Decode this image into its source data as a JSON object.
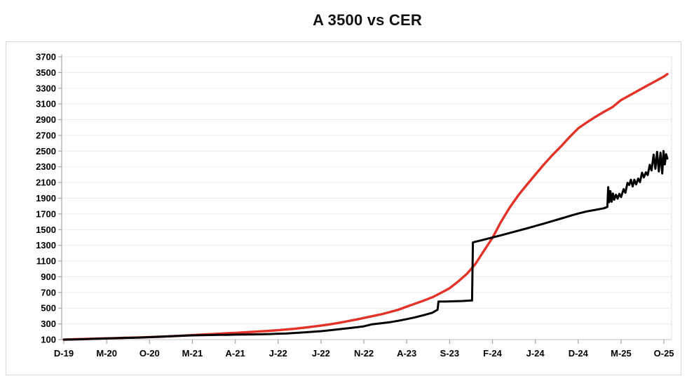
{
  "title": "A 3500 vs CER",
  "colors": {
    "background": "#ffffff",
    "box_border": "#d9d9d9",
    "gridline": "#ebebeb",
    "axis_line": "#a6a6a6",
    "x_axis_line": "#c6c6c6",
    "plot_right_border": "#e0e0e0",
    "tick": "#a6a6a6",
    "label_text": "#000000",
    "cer_red": "#e33228",
    "a3500_black": "#000000"
  },
  "chart_data": {
    "type": "line",
    "title": "A 3500 vs CER",
    "grid": "horizontal",
    "legend": "none",
    "x_axis": {
      "unit": "months since Dec-2019 (labels M-YY)",
      "tick_labels": [
        "D-19",
        "M-20",
        "O-20",
        "M-21",
        "A-21",
        "J-22",
        "J-22",
        "N-22",
        "A-23",
        "S-23",
        "F-24",
        "J-24",
        "D-24",
        "M-25",
        "O-25"
      ],
      "tick_months": [
        0,
        5,
        10,
        15,
        20,
        25,
        30,
        35,
        40,
        45,
        50,
        55,
        60,
        65,
        70
      ],
      "range": [
        0,
        70.5
      ]
    },
    "y_axis": {
      "min": 100,
      "max": 3700,
      "ticks": [
        100,
        300,
        500,
        700,
        900,
        1100,
        1300,
        1500,
        1700,
        1900,
        2100,
        2300,
        2500,
        2700,
        2900,
        3100,
        3300,
        3500,
        3700
      ]
    },
    "series": [
      {
        "name": "CER",
        "color": "#e33228",
        "width": 3.4,
        "points": [
          [
            0,
            100
          ],
          [
            1,
            104
          ],
          [
            2,
            107
          ],
          [
            3,
            110
          ],
          [
            4,
            113
          ],
          [
            5,
            116
          ],
          [
            6,
            119
          ],
          [
            7,
            122
          ],
          [
            8,
            125
          ],
          [
            9,
            128
          ],
          [
            10,
            132
          ],
          [
            11,
            136
          ],
          [
            12,
            141
          ],
          [
            13,
            146
          ],
          [
            14,
            151
          ],
          [
            15,
            157
          ],
          [
            16,
            163
          ],
          [
            17,
            169
          ],
          [
            18,
            174
          ],
          [
            19,
            180
          ],
          [
            20,
            186
          ],
          [
            21,
            192
          ],
          [
            22,
            198
          ],
          [
            23,
            205
          ],
          [
            24,
            212
          ],
          [
            25,
            220
          ],
          [
            26,
            229
          ],
          [
            27,
            239
          ],
          [
            28,
            251
          ],
          [
            29,
            264
          ],
          [
            30,
            278
          ],
          [
            31,
            294
          ],
          [
            32,
            312
          ],
          [
            33,
            332
          ],
          [
            34,
            353
          ],
          [
            35,
            375
          ],
          [
            36,
            398
          ],
          [
            37,
            422
          ],
          [
            38,
            449
          ],
          [
            39,
            480
          ],
          [
            40,
            520
          ],
          [
            41,
            558
          ],
          [
            42,
            598
          ],
          [
            43,
            640
          ],
          [
            44,
            695
          ],
          [
            45,
            755
          ],
          [
            46,
            840
          ],
          [
            47,
            935
          ],
          [
            48,
            1060
          ],
          [
            49,
            1230
          ],
          [
            50,
            1395
          ],
          [
            51,
            1600
          ],
          [
            52,
            1780
          ],
          [
            53,
            1935
          ],
          [
            54,
            2070
          ],
          [
            55,
            2200
          ],
          [
            56,
            2330
          ],
          [
            57,
            2450
          ],
          [
            58,
            2560
          ],
          [
            59,
            2680
          ],
          [
            60,
            2790
          ],
          [
            61,
            2865
          ],
          [
            62,
            2935
          ],
          [
            63,
            3000
          ],
          [
            64,
            3060
          ],
          [
            65,
            3150
          ],
          [
            66,
            3210
          ],
          [
            67,
            3270
          ],
          [
            68,
            3330
          ],
          [
            69,
            3390
          ],
          [
            70,
            3450
          ],
          [
            70.4,
            3480
          ]
        ]
      },
      {
        "name": "A 3500",
        "color": "#000000",
        "width": 3,
        "points": [
          [
            0,
            100
          ],
          [
            1,
            101
          ],
          [
            2,
            104
          ],
          [
            3,
            108
          ],
          [
            4,
            112
          ],
          [
            5,
            115
          ],
          [
            6,
            118
          ],
          [
            7,
            121
          ],
          [
            8,
            123
          ],
          [
            9,
            127
          ],
          [
            10,
            131
          ],
          [
            11,
            136
          ],
          [
            12,
            140
          ],
          [
            13,
            146
          ],
          [
            14,
            150
          ],
          [
            15,
            154
          ],
          [
            16,
            156
          ],
          [
            17,
            158
          ],
          [
            18,
            160
          ],
          [
            19,
            161
          ],
          [
            20,
            163
          ],
          [
            21,
            165
          ],
          [
            22,
            166
          ],
          [
            23,
            168
          ],
          [
            24,
            171
          ],
          [
            25,
            175
          ],
          [
            26,
            179
          ],
          [
            27,
            185
          ],
          [
            28,
            192
          ],
          [
            29,
            199
          ],
          [
            30,
            207
          ],
          [
            31,
            218
          ],
          [
            32,
            230
          ],
          [
            33,
            243
          ],
          [
            34,
            255
          ],
          [
            35,
            269
          ],
          [
            36,
            296
          ],
          [
            37,
            307
          ],
          [
            38,
            321
          ],
          [
            39,
            339
          ],
          [
            40,
            361
          ],
          [
            41,
            384
          ],
          [
            42,
            412
          ],
          [
            43,
            442
          ],
          [
            43.5,
            475
          ],
          [
            43.6,
            480
          ],
          [
            43.7,
            584
          ],
          [
            44.5,
            585
          ],
          [
            45.5,
            588
          ],
          [
            46.5,
            591
          ],
          [
            47.5,
            598
          ],
          [
            47.62,
            598
          ],
          [
            47.72,
            1336
          ],
          [
            48,
            1345
          ],
          [
            49,
            1372
          ],
          [
            50,
            1400
          ],
          [
            51,
            1428
          ],
          [
            52,
            1457
          ],
          [
            53,
            1486
          ],
          [
            54,
            1516
          ],
          [
            55,
            1546
          ],
          [
            56,
            1577
          ],
          [
            57,
            1609
          ],
          [
            58,
            1641
          ],
          [
            59,
            1674
          ],
          [
            60,
            1705
          ],
          [
            61,
            1732
          ],
          [
            62,
            1752
          ],
          [
            63,
            1772
          ],
          [
            63.4,
            1790
          ],
          [
            63.5,
            2040
          ],
          [
            63.62,
            1850
          ],
          [
            63.75,
            1990
          ],
          [
            63.9,
            1855
          ],
          [
            64.05,
            1960
          ],
          [
            64.2,
            1880
          ],
          [
            64.4,
            1945
          ],
          [
            64.6,
            1895
          ],
          [
            64.8,
            1955
          ],
          [
            65,
            1915
          ],
          [
            65.3,
            2015
          ],
          [
            65.5,
            1970
          ],
          [
            65.75,
            2095
          ],
          [
            65.95,
            2070
          ],
          [
            66.15,
            2135
          ],
          [
            66.35,
            2050
          ],
          [
            66.55,
            2135
          ],
          [
            66.75,
            2075
          ],
          [
            67,
            2150
          ],
          [
            67.2,
            2105
          ],
          [
            67.45,
            2225
          ],
          [
            67.65,
            2165
          ],
          [
            67.9,
            2230
          ],
          [
            68.1,
            2195
          ],
          [
            68.35,
            2325
          ],
          [
            68.55,
            2255
          ],
          [
            68.8,
            2455
          ],
          [
            69,
            2275
          ],
          [
            69.2,
            2490
          ],
          [
            69.4,
            2240
          ],
          [
            69.6,
            2480
          ],
          [
            69.8,
            2215
          ],
          [
            69.95,
            2500
          ],
          [
            70.1,
            2330
          ],
          [
            70.25,
            2460
          ],
          [
            70.4,
            2405
          ]
        ]
      }
    ]
  }
}
